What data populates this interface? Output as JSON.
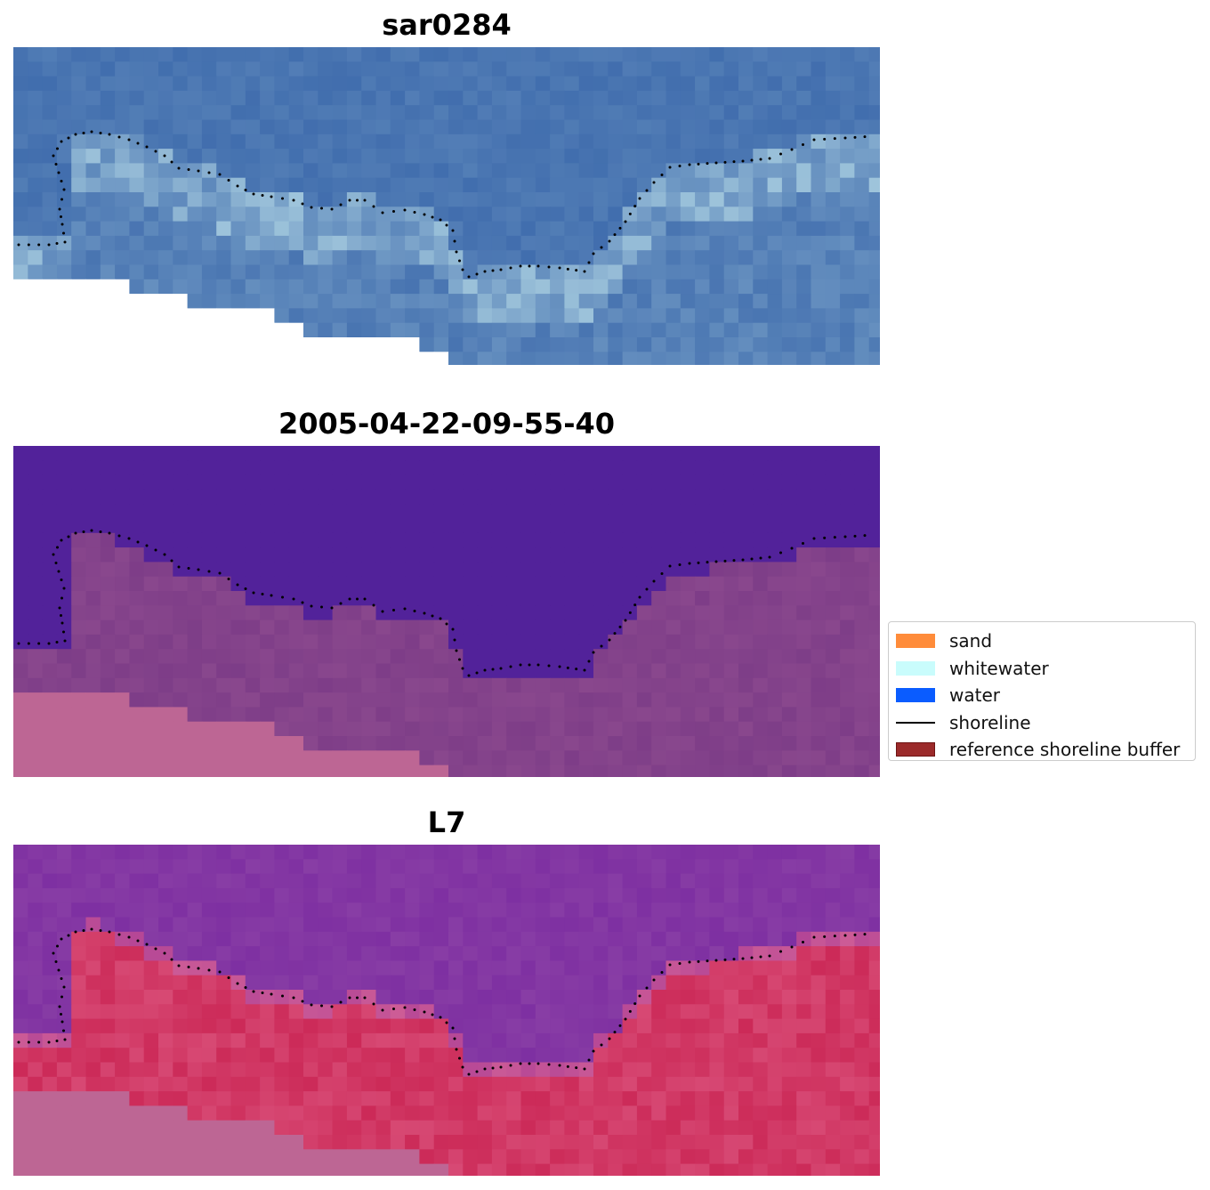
{
  "panels": [
    {
      "title": "sar0284",
      "style": "rgb"
    },
    {
      "title": "2005-04-22-09-55-40",
      "style": "classified"
    },
    {
      "title": "L7",
      "style": "index"
    }
  ],
  "legend": {
    "items": [
      {
        "label": "sand",
        "kind": "patch",
        "color": "#ff8c3a",
        "border": "#ff8c3a"
      },
      {
        "label": "whitewater",
        "kind": "patch",
        "color": "#c9fcfc",
        "border": "#c9fcfc"
      },
      {
        "label": "water",
        "kind": "patch",
        "color": "#0a5cff",
        "border": "#0a5cff"
      },
      {
        "label": "shoreline",
        "kind": "line",
        "color": "#000000"
      },
      {
        "label": "reference shoreline buffer",
        "kind": "patch",
        "color": "#9b2a2a",
        "border": "#6e1414"
      }
    ]
  },
  "colors": {
    "rgb_water": "#3a67aa",
    "rgb_whitewater": "#c9ecf0",
    "classified_water": "#52229a",
    "classified_land": "#7a3a86",
    "nodata_pink": "#bd6694",
    "index_water": "#7a2aa0",
    "index_land": "#c8204f"
  }
}
